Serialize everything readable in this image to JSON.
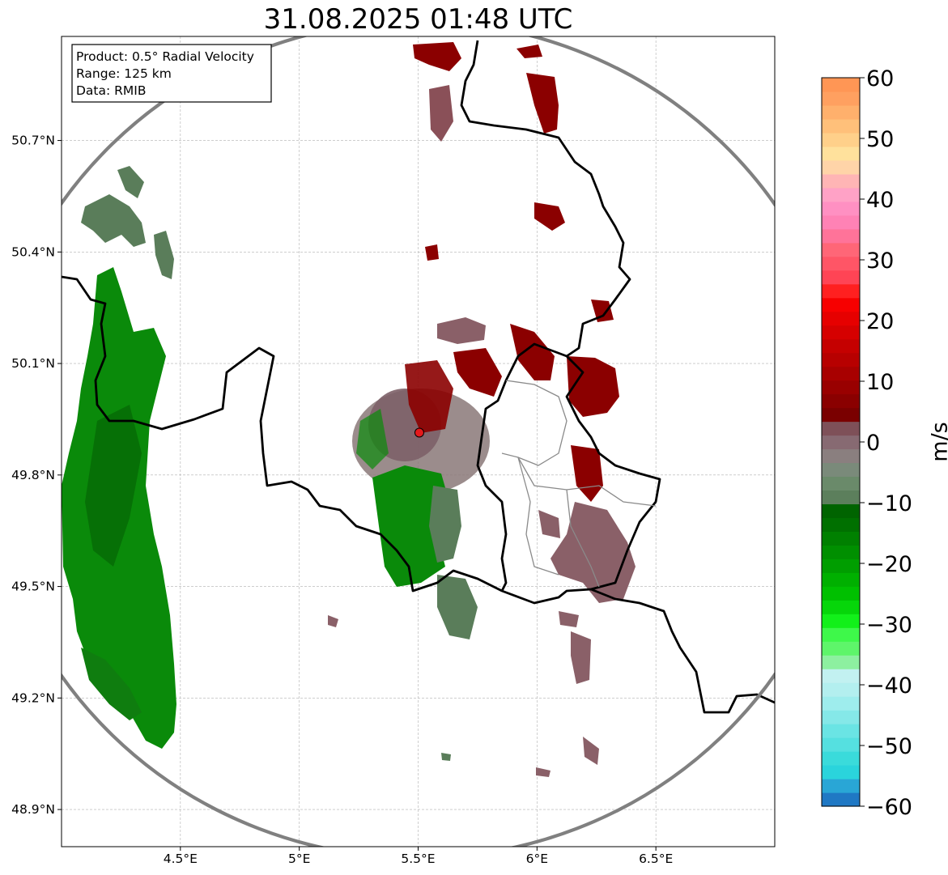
{
  "title": "31.08.2025 01:48 UTC",
  "info_box": {
    "product": "Product: 0.5° Radial Velocity",
    "range": "Range: 125 km",
    "source": "Data: RMIB"
  },
  "map": {
    "extent": {
      "lon_min": 4.0,
      "lon_max": 7.0,
      "lat_min": 48.8,
      "lat_max": 50.98
    },
    "x_ticks": [
      {
        "lon": 4.5,
        "label": "4.5°E"
      },
      {
        "lon": 5.0,
        "label": "5°E"
      },
      {
        "lon": 5.5,
        "label": "5.5°E"
      },
      {
        "lon": 6.0,
        "label": "6°E"
      },
      {
        "lon": 6.5,
        "label": "6.5°E"
      }
    ],
    "y_ticks": [
      {
        "lat": 50.7,
        "label": "50.7°N"
      },
      {
        "lat": 50.4,
        "label": "50.4°N"
      },
      {
        "lat": 50.1,
        "label": "50.1°N"
      },
      {
        "lat": 49.8,
        "label": "49.8°N"
      },
      {
        "lat": 49.5,
        "label": "49.5°N"
      },
      {
        "lat": 49.2,
        "label": "49.2°N"
      },
      {
        "lat": 48.9,
        "label": "48.9°N"
      }
    ],
    "radar_site": {
      "lon": 5.505,
      "lat": 49.914,
      "color": "#e41a1c"
    },
    "range_ring_km": 125,
    "gridlines": true,
    "colors": {
      "ring": "#808080",
      "border": "#000000",
      "admin_border": "#8a8a8a",
      "approach_strong": "#0a8a0a",
      "approach_light": "#5a7d5a",
      "recede_strong": "#8b0000",
      "recede_light": "#8a6068"
    }
  },
  "colorbar": {
    "unit": "m/s",
    "min": -60,
    "max": 60,
    "ticks": [
      60,
      50,
      40,
      30,
      20,
      10,
      0,
      -10,
      -20,
      -30,
      -40,
      -50,
      -60
    ],
    "tick_labels": [
      "60",
      "50",
      "40",
      "30",
      "20",
      "10",
      "0",
      "−10",
      "−20",
      "−30",
      "−40",
      "−50",
      "−60"
    ],
    "colors_low_to_high": [
      "#1f78c4",
      "#29a6d6",
      "#2ad4dc",
      "#3adbdb",
      "#55e0e0",
      "#6ae4e4",
      "#85e8e8",
      "#9eeded",
      "#b3efef",
      "#c2f1f1",
      "#8df0a0",
      "#5ef56a",
      "#3ef84a",
      "#12f01a",
      "#06d60a",
      "#00c000",
      "#00b000",
      "#009e00",
      "#008f00",
      "#008000",
      "#007000",
      "#006400",
      "#5c7f5c",
      "#6a8a6a",
      "#7a8a7a",
      "#8a7f7f",
      "#876a72",
      "#7e5058",
      "#7a0000",
      "#8a0000",
      "#990000",
      "#a80000",
      "#b70000",
      "#c50000",
      "#d60000",
      "#e60000",
      "#f70000",
      "#ff2020",
      "#ff4455",
      "#ff5566",
      "#ff6677",
      "#ff7399",
      "#ff82b5",
      "#ff90c2",
      "#ffa2c6",
      "#ffb5b5",
      "#ffd4a8",
      "#ffe19c",
      "#ffd08a",
      "#ffc07a",
      "#ffb06c",
      "#ffa060",
      "#ff9655"
    ]
  }
}
